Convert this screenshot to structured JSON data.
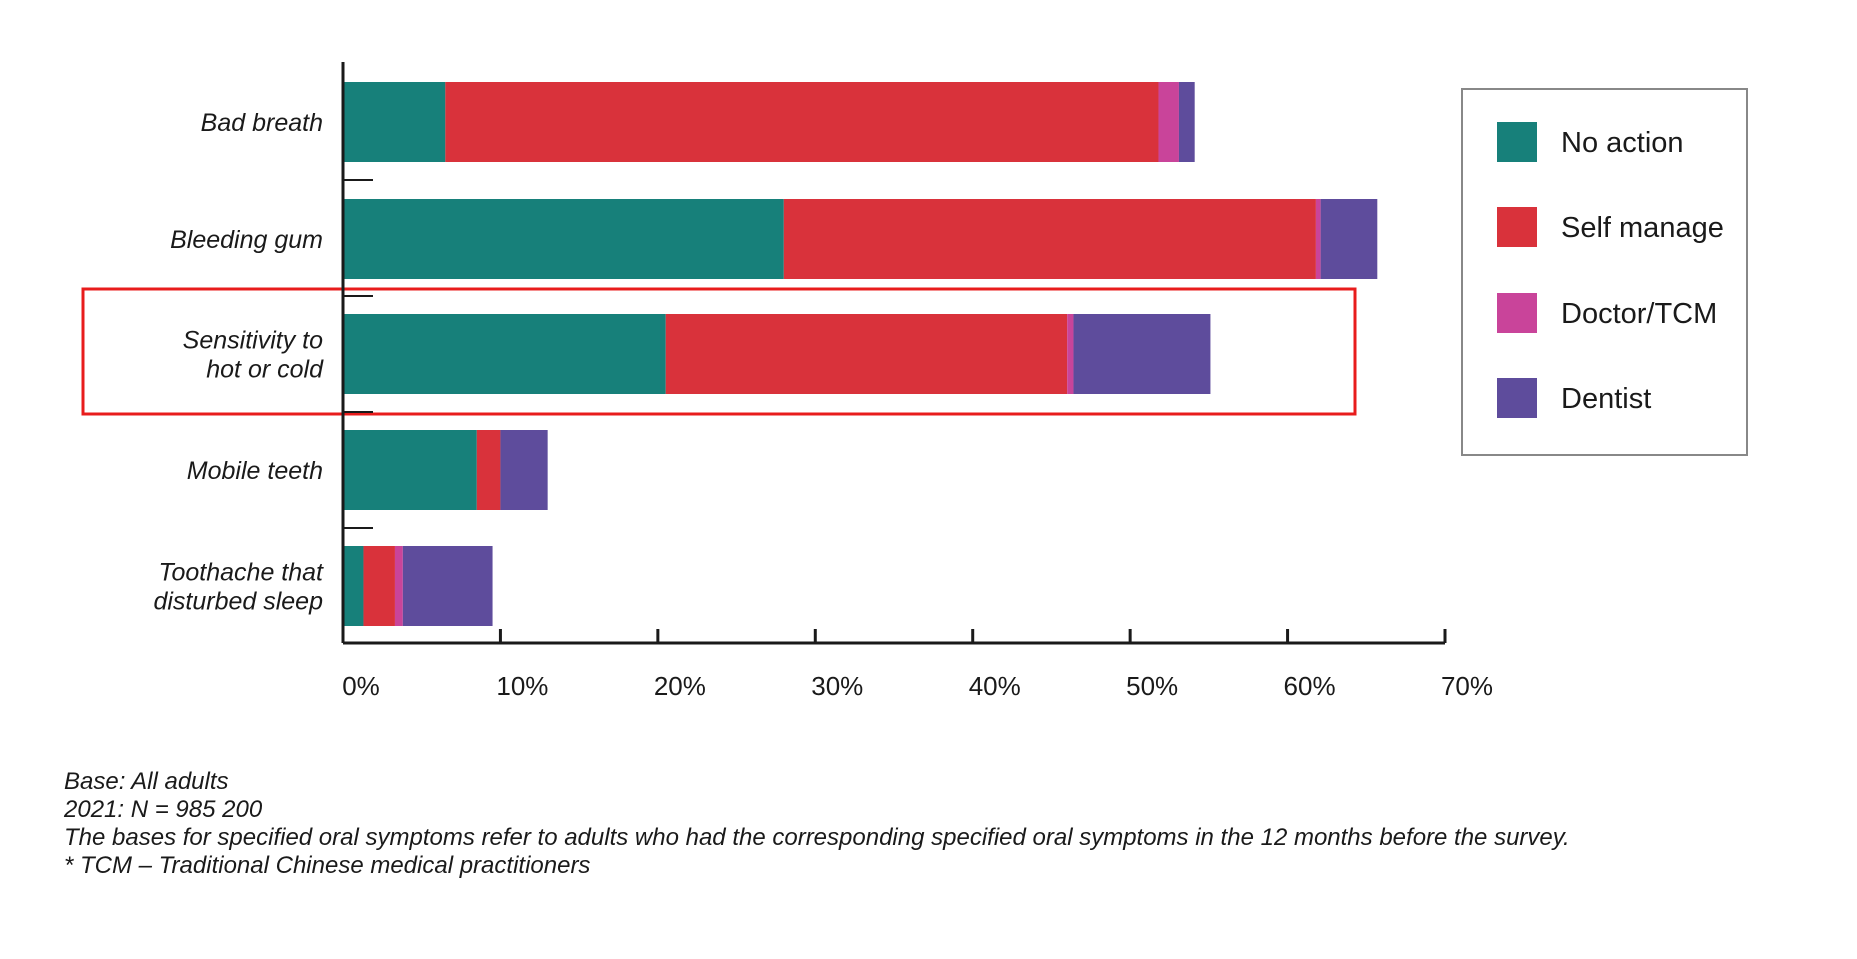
{
  "chart_data": {
    "type": "bar",
    "orientation": "horizontal",
    "stacked": true,
    "categories": [
      [
        "Bad breath"
      ],
      [
        "Bleeding gum"
      ],
      [
        "Sensitivity to",
        "hot or cold"
      ],
      [
        "Mobile teeth"
      ],
      [
        "Toothache that",
        "disturbed sleep"
      ]
    ],
    "series": [
      {
        "name": "No action",
        "color": "#17807a",
        "values": [
          6.5,
          28.0,
          20.5,
          8.5,
          1.3
        ]
      },
      {
        "name": "Self manage",
        "color": "#d9323b",
        "values": [
          45.3,
          33.8,
          25.5,
          1.5,
          2.0
        ]
      },
      {
        "name": "Doctor/TCM",
        "color": "#c9449a",
        "values": [
          1.3,
          0.3,
          0.4,
          0.0,
          0.5
        ]
      },
      {
        "name": "Dentist",
        "color": "#5e4c9c",
        "values": [
          1.0,
          3.6,
          8.7,
          3.0,
          5.7
        ]
      }
    ],
    "x_ticks": [
      "0%",
      "10%",
      "20%",
      "30%",
      "40%",
      "50%",
      "60%",
      "70%"
    ],
    "xlim": [
      0,
      70
    ],
    "legend_position": "right",
    "highlighted_category": [
      "Sensitivity to",
      "hot or cold"
    ],
    "highlight_color": "#e81c1c",
    "grid": false
  },
  "footnotes": {
    "base": "Base: All adults",
    "n": "2021: N = 985 200",
    "note": "The bases for specified oral symptoms refer to adults who had the corresponding specified oral symptoms in the 12 months before the survey.",
    "tcm": "* TCM – Traditional Chinese medical practitioners"
  }
}
